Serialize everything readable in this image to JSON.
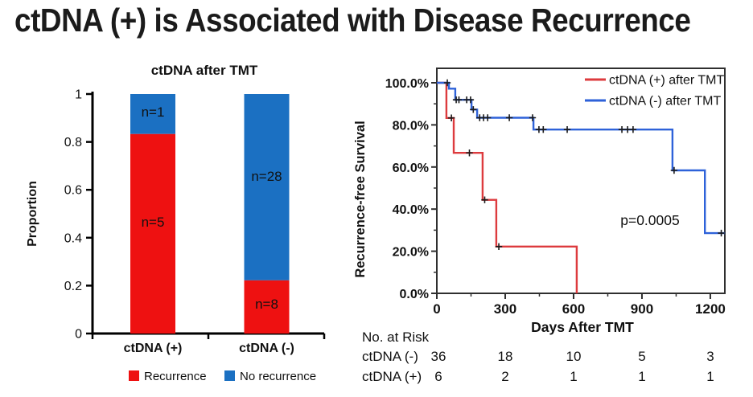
{
  "title": "ctDNA (+) is Associated with Disease Recurrence",
  "colors": {
    "recurrence_red": "#ee1111",
    "bar_blue": "#1b70c2",
    "km_red": "#dd3b3e",
    "km_blue": "#2e62d9",
    "axis_black": "#000000",
    "frame_gray": "#2f2f2f",
    "censor_dark": "#1a1a1a",
    "text_dark": "#111111"
  },
  "chart_data": [
    {
      "type": "bar",
      "variant": "stacked",
      "title": "ctDNA after TMT",
      "ylabel": "Proportion",
      "ylim": [
        0,
        1
      ],
      "yticks": [
        0,
        0.2,
        0.4,
        0.6,
        0.8,
        1
      ],
      "ytick_labels": [
        "0",
        "0.2",
        "0.4",
        "0.6",
        "0.8",
        "1"
      ],
      "categories": [
        "ctDNA (+)",
        "ctDNA (-)"
      ],
      "series": [
        {
          "name": "Recurrence",
          "color_key": "recurrence_red",
          "values": [
            0.833,
            0.222
          ],
          "labels": [
            "n=5",
            "n=8"
          ]
        },
        {
          "name": "No recurrence",
          "color_key": "bar_blue",
          "values": [
            0.167,
            0.778
          ],
          "labels": [
            "n=1",
            "n=28"
          ]
        }
      ],
      "legend": [
        "Recurrence",
        "No recurrence"
      ]
    },
    {
      "type": "line",
      "variant": "kaplan-meier",
      "xlabel": "Days After TMT",
      "ylabel": "Recurrence-free Survival",
      "xlim": [
        0,
        1264
      ],
      "xticks": [
        0,
        300,
        600,
        900,
        1200
      ],
      "ytick_percents": [
        0,
        20,
        40,
        60,
        80,
        100
      ],
      "ytick_labels": [
        "0.0%",
        "20.0%",
        "40.0%",
        "60.0%",
        "80.0%",
        "100.0%"
      ],
      "annotation": "p=0.0005",
      "legend_position": "top-right",
      "series": [
        {
          "name": "ctDNA (+) after TMT",
          "color_key": "km_red",
          "steps": [
            [
              0,
              100
            ],
            [
              42,
              100
            ],
            [
              42,
              83.3
            ],
            [
              74,
              83.3
            ],
            [
              74,
              66.7
            ],
            [
              201,
              66.7
            ],
            [
              201,
              44.4
            ],
            [
              261,
              44.4
            ],
            [
              261,
              22.2
            ],
            [
              614,
              22.2
            ],
            [
              614,
              0
            ]
          ],
          "censors": [
            [
              64,
              83.3
            ],
            [
              143,
              66.7
            ],
            [
              210,
              44.4
            ],
            [
              272,
              22.2
            ]
          ]
        },
        {
          "name": "ctDNA (-) after TMT",
          "color_key": "km_blue",
          "steps": [
            [
              0,
              100
            ],
            [
              53,
              100
            ],
            [
              53,
              97.2
            ],
            [
              81,
              97.2
            ],
            [
              81,
              91.9
            ],
            [
              152,
              91.9
            ],
            [
              152,
              87.3
            ],
            [
              177,
              87.3
            ],
            [
              177,
              83.4
            ],
            [
              424,
              83.4
            ],
            [
              424,
              77.8
            ],
            [
              1034,
              77.8
            ],
            [
              1034,
              58.4
            ],
            [
              1176,
              58.4
            ],
            [
              1176,
              28.6
            ],
            [
              1264,
              28.6
            ]
          ],
          "censors": [
            [
              46,
              100
            ],
            [
              85,
              91.9
            ],
            [
              97,
              91.9
            ],
            [
              131,
              91.9
            ],
            [
              148,
              91.9
            ],
            [
              160,
              87.3
            ],
            [
              188,
              83.4
            ],
            [
              205,
              83.4
            ],
            [
              223,
              83.4
            ],
            [
              318,
              83.4
            ],
            [
              420,
              83.4
            ],
            [
              448,
              77.8
            ],
            [
              467,
              77.8
            ],
            [
              572,
              77.8
            ],
            [
              812,
              77.8
            ],
            [
              837,
              77.8
            ],
            [
              861,
              77.8
            ],
            [
              1041,
              58.4
            ],
            [
              1248,
              28.6
            ]
          ]
        }
      ],
      "risk_table": {
        "title": "No. at Risk",
        "at_days": [
          0,
          300,
          600,
          900,
          1200
        ],
        "rows": [
          {
            "label": "ctDNA (-)",
            "values": [
              "36",
              "18",
              "10",
              "5",
              "3"
            ]
          },
          {
            "label": "ctDNA (+)",
            "values": [
              "6",
              "2",
              "1",
              "1",
              "1"
            ]
          }
        ]
      }
    }
  ]
}
